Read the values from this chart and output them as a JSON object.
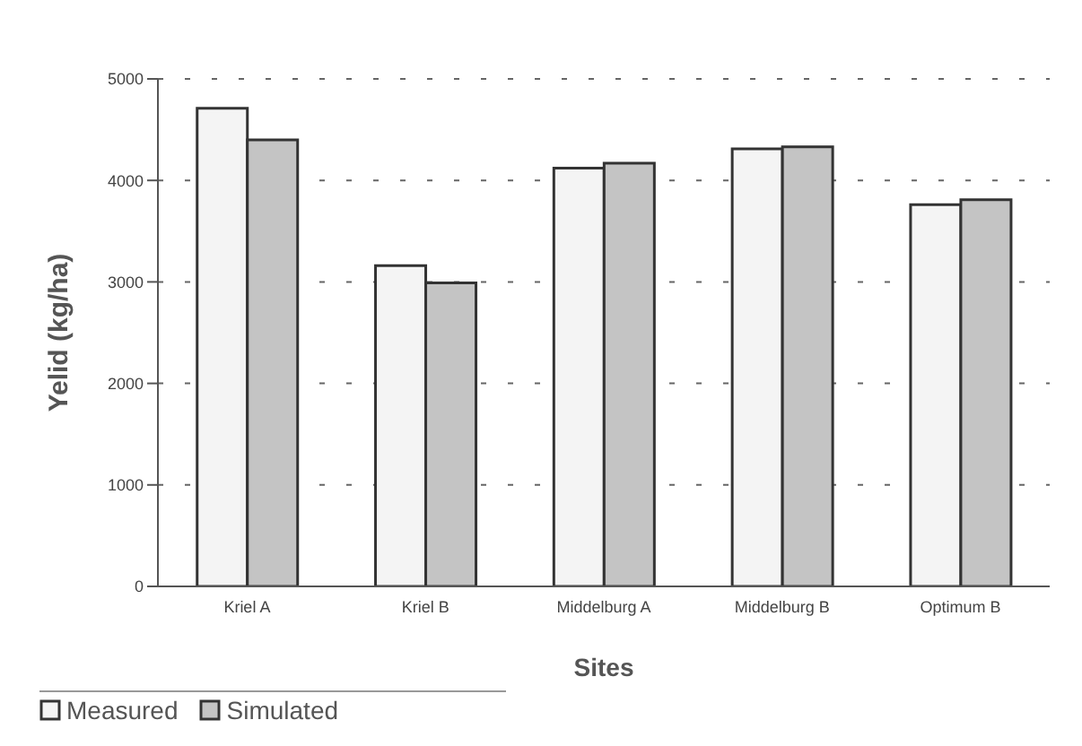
{
  "chart_data": {
    "type": "bar",
    "xlabel": "Sites",
    "ylabel": "Yelid (kg/ha)",
    "categories": [
      "Kriel A",
      "Kriel B",
      "Middelburg A",
      "Middelburg B",
      "Optimum B"
    ],
    "series": [
      {
        "name": "Measured",
        "color": "#f4f4f4",
        "values": [
          4710,
          3160,
          4120,
          4310,
          3760
        ]
      },
      {
        "name": "Simulated",
        "color": "#c4c4c4",
        "values": [
          4400,
          2990,
          4170,
          4330,
          3810
        ]
      }
    ],
    "ylim": [
      0,
      5000
    ],
    "yticks": [
      0,
      1000,
      2000,
      3000,
      4000,
      5000
    ],
    "grid": "y",
    "legend": "bottom left"
  }
}
